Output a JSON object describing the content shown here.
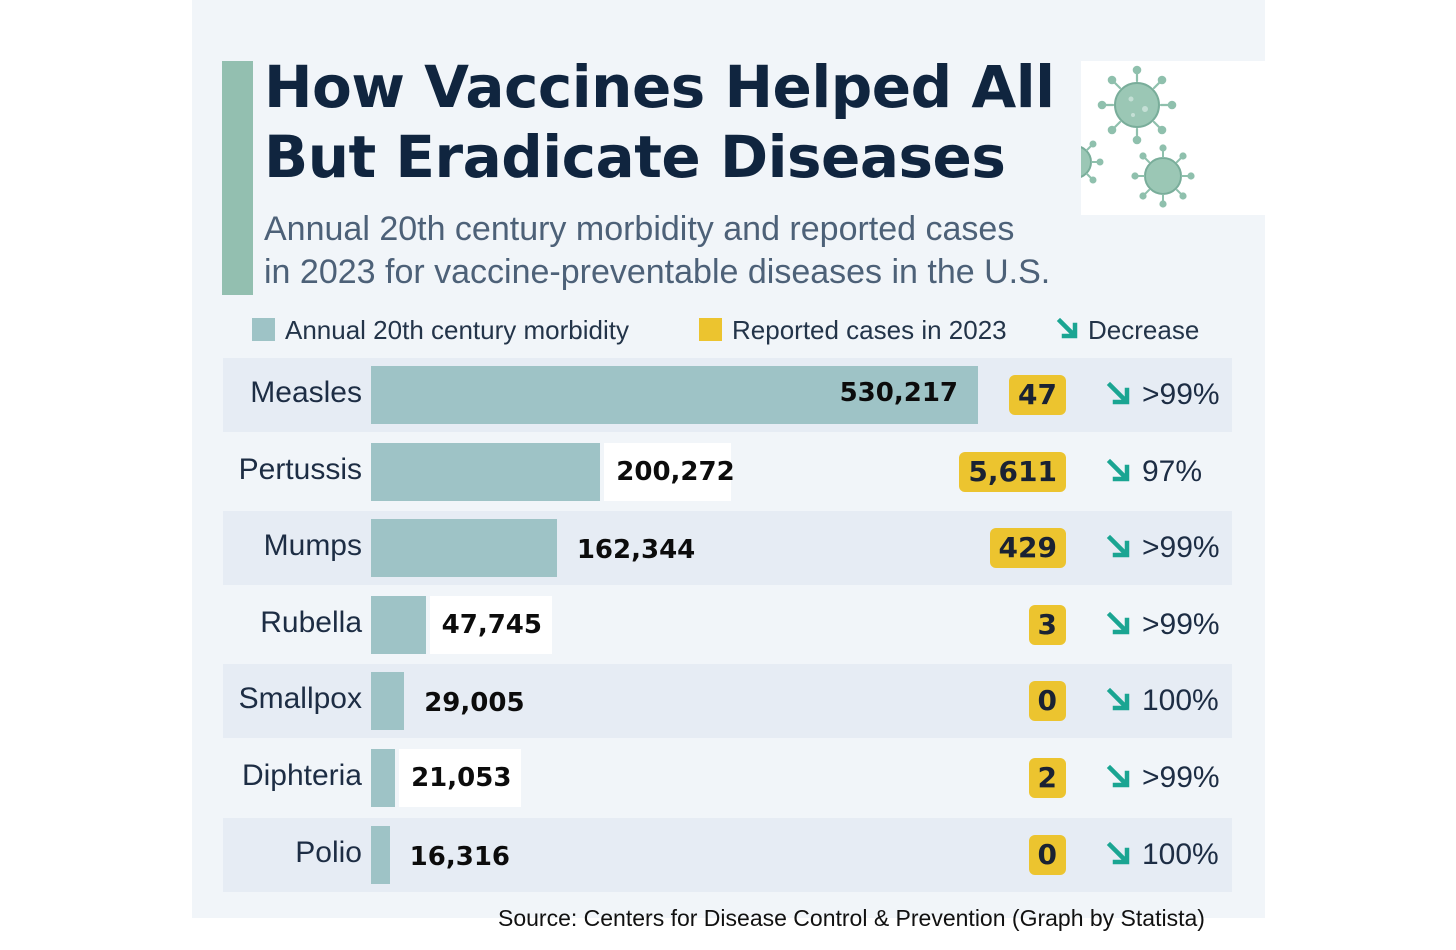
{
  "header": {
    "title_line1": "How Vaccines Helped All",
    "title_line2": "But Eradicate Diseases",
    "subtitle_line1": "Annual 20th century morbidity and reported cases",
    "subtitle_line2": "in 2023 for vaccine-preventable diseases in the U.S."
  },
  "legend": {
    "morbidity_label": "Annual 20th century morbidity",
    "cases_label": "Reported cases in 2023",
    "decrease_label": "Decrease"
  },
  "colors": {
    "morbidity": "#9ec3c6",
    "cases": "#ecc42f",
    "decrease_arrow": "#1aa592",
    "title": "#10253f",
    "accent": "#93bfb0"
  },
  "icons": {
    "virus": "virus-icon",
    "decrease": "arrow-down-right-icon"
  },
  "chart_data": {
    "type": "bar",
    "title": "How Vaccines Helped All But Eradicate Diseases",
    "subtitle": "Annual 20th century morbidity and reported cases in 2023 for vaccine-preventable diseases in the U.S.",
    "categories": [
      "Measles",
      "Pertussis",
      "Mumps",
      "Rubella",
      "Smallpox",
      "Diphteria",
      "Polio"
    ],
    "series": [
      {
        "name": "Annual 20th century morbidity",
        "values": [
          530217,
          200272,
          162344,
          47745,
          29005,
          21053,
          16316
        ],
        "labels": [
          "530,217",
          "200,272",
          "162,344",
          "47,745",
          "29,005",
          "21,053",
          "16,316"
        ]
      },
      {
        "name": "Reported cases in 2023",
        "values": [
          47,
          5611,
          429,
          3,
          0,
          2,
          0
        ],
        "labels": [
          "47",
          "5,611",
          "429",
          "3",
          "0",
          "2",
          "0"
        ]
      }
    ],
    "decrease": [
      ">99%",
      "97%",
      ">99%",
      ">99%",
      "100%",
      ">99%",
      "100%"
    ],
    "xlim": [
      0,
      530217
    ],
    "xlabel": "",
    "ylabel": "",
    "legend_position": "top"
  },
  "footer": {
    "source": "Source: Centers for Disease Control  & Prevention (Graph by Statista)"
  }
}
